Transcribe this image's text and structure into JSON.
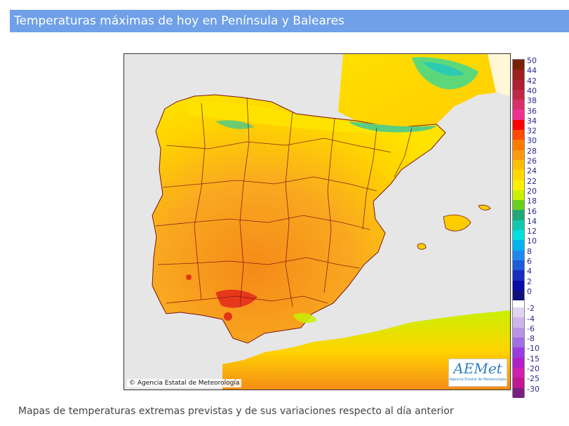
{
  "page_title": "Temperaturas máximas de hoy en Península y Baleares",
  "footer_text": "Mapas de temperaturas extremas previstas y de sus variaciones respecto al día anterior",
  "map": {
    "copyright": "© Agencia Estatal de Meteorología",
    "logo_text_main": "AEMet",
    "logo_text_sub": "Agencia Estatal de Meteorología",
    "colors": {
      "sea": "#e6e6e6",
      "france": "#fff7d6",
      "land_hot": "#f7a21a",
      "land_warm": "#ffcc00",
      "land_mild": "#ffe400",
      "land_cool": "#c8f000",
      "land_very_hot": "#e0191c",
      "borders": "#7a1414"
    }
  },
  "legend": {
    "items": [
      {
        "label": "50",
        "color": "#7a2000"
      },
      {
        "label": "44",
        "color": "#9e2020"
      },
      {
        "label": "42",
        "color": "#b02030"
      },
      {
        "label": "40",
        "color": "#c02848"
      },
      {
        "label": "38",
        "color": "#d8306a"
      },
      {
        "label": "36",
        "color": "#f03090"
      },
      {
        "label": "34",
        "color": "#ff0000"
      },
      {
        "label": "32",
        "color": "#ff4a00"
      },
      {
        "label": "30",
        "color": "#ff7a00"
      },
      {
        "label": "28",
        "color": "#ff9a10"
      },
      {
        "label": "26",
        "color": "#ffbe00"
      },
      {
        "label": "24",
        "color": "#ffda00"
      },
      {
        "label": "22",
        "color": "#fff000"
      },
      {
        "label": "20",
        "color": "#c8f000"
      },
      {
        "label": "18",
        "color": "#6ad01e"
      },
      {
        "label": "16",
        "color": "#20a878"
      },
      {
        "label": "14",
        "color": "#10c8b0"
      },
      {
        "label": "12",
        "color": "#00e0e0"
      },
      {
        "label": "10",
        "color": "#00b4f0"
      },
      {
        "label": "8",
        "color": "#1e88f0"
      },
      {
        "label": "6",
        "color": "#1e5cd8"
      },
      {
        "label": "4",
        "color": "#1a2cc0"
      },
      {
        "label": "2",
        "color": "#0a0aa8"
      },
      {
        "label": "0",
        "color": "#10107a"
      },
      {
        "label": "-2",
        "color": "#e0d4ee"
      },
      {
        "label": "-4",
        "color": "#cfb6ea"
      },
      {
        "label": "-6",
        "color": "#b994e6"
      },
      {
        "label": "-8",
        "color": "#a070e4"
      },
      {
        "label": "-10",
        "color": "#9a3ce0"
      },
      {
        "label": "-15",
        "color": "#b020c8"
      },
      {
        "label": "-20",
        "color": "#d020b0"
      },
      {
        "label": "-25",
        "color": "#c01890"
      },
      {
        "label": "-30",
        "color": "#7a2080"
      }
    ]
  }
}
